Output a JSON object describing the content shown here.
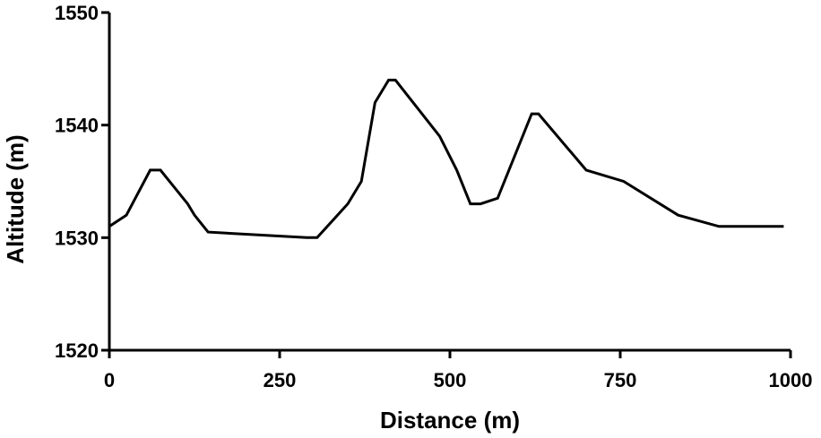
{
  "chart_data": {
    "type": "line",
    "title": "",
    "xlabel": "Distance (m)",
    "ylabel": "Altitude (m)",
    "xlim": [
      0,
      1000
    ],
    "ylim": [
      1520,
      1550
    ],
    "xticks": [
      0,
      250,
      500,
      750,
      1000
    ],
    "xtick_labels": [
      "0",
      "250",
      "500",
      "750",
      "1000"
    ],
    "yticks": [
      1520,
      1530,
      1540,
      1550
    ],
    "ytick_labels": [
      "1520",
      "1530",
      "1540",
      "1550"
    ],
    "grid": false,
    "legend": "none",
    "series": [
      {
        "x": [
          0,
          25,
          60,
          75,
          115,
          125,
          145,
          290,
          305,
          350,
          370,
          390,
          410,
          420,
          485,
          510,
          530,
          545,
          570,
          620,
          630,
          700,
          755,
          835,
          895,
          990
        ],
        "y": [
          1531,
          1532,
          1536,
          1536,
          1533,
          1532,
          1530.5,
          1530,
          1530,
          1533,
          1535,
          1542,
          1544,
          1544,
          1539,
          1536,
          1533,
          1533,
          1533.5,
          1541,
          1541,
          1536,
          1535,
          1532,
          1531,
          1531
        ]
      }
    ]
  }
}
